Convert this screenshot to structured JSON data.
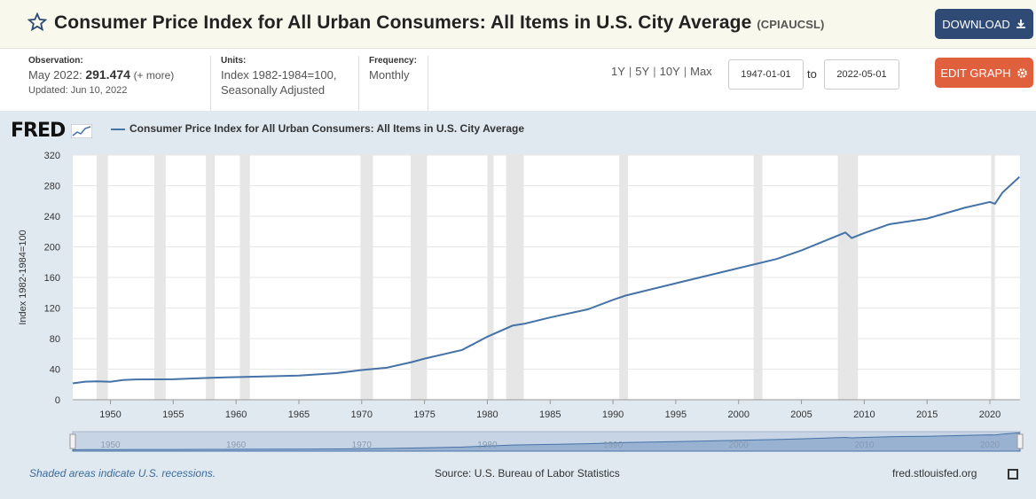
{
  "header": {
    "title": "Consumer Price Index for All Urban Consumers: All Items in U.S. City Average",
    "series_id": "(CPIAUCSL)",
    "download_label": "DOWNLOAD",
    "edit_label": "EDIT GRAPH"
  },
  "meta": {
    "observation_label": "Observation:",
    "observation_date": "May 2022:",
    "observation_value": "291.474",
    "observation_more": "(+ more)",
    "updated": "Updated: Jun 10, 2022",
    "units_label": "Units:",
    "units_line1": "Index 1982-1984=100,",
    "units_line2": "Seasonally Adjusted",
    "frequency_label": "Frequency:",
    "frequency_value": "Monthly"
  },
  "range": {
    "links": [
      "1Y",
      "5Y",
      "10Y",
      "Max"
    ],
    "start": "1947-01-01",
    "end": "2022-05-01",
    "to_label": "to"
  },
  "footer": {
    "recession_note": "Shaded areas indicate U.S. recessions.",
    "source": "Source: U.S. Bureau of Labor Statistics",
    "url": "fred.stlouisfed.org"
  },
  "logo": "FRED",
  "colors": {
    "series": "#4572a7",
    "recession": "#e6e6e6",
    "download": "#2e4a75",
    "edit": "#e0603e"
  },
  "chart_data": {
    "type": "line",
    "title": "",
    "ylabel": "Index 1982-1984=100",
    "xlabel": "",
    "xlim": [
      1947,
      2022.4
    ],
    "ylim": [
      0,
      320
    ],
    "yticks": [
      0,
      40,
      80,
      120,
      160,
      200,
      240,
      280,
      320
    ],
    "xticks": [
      1950,
      1955,
      1960,
      1965,
      1970,
      1975,
      1980,
      1985,
      1990,
      1995,
      2000,
      2005,
      2010,
      2015,
      2020
    ],
    "navigator_ticks": [
      1950,
      1960,
      1970,
      1980,
      1990,
      2000,
      2010,
      2020
    ],
    "grid": true,
    "legend": "top-left",
    "recessions": [
      [
        1948.9,
        1949.8
      ],
      [
        1953.5,
        1954.4
      ],
      [
        1957.6,
        1958.3
      ],
      [
        1960.3,
        1961.1
      ],
      [
        1969.9,
        1970.9
      ],
      [
        1973.9,
        1975.2
      ],
      [
        1980.0,
        1980.5
      ],
      [
        1981.5,
        1982.9
      ],
      [
        1990.5,
        1991.2
      ],
      [
        2001.2,
        2001.9
      ],
      [
        2007.9,
        2009.5
      ],
      [
        2020.1,
        2020.4
      ]
    ],
    "series": [
      {
        "name": "Consumer Price Index for All Urban Consumers: All Items in U.S. City Average",
        "x": [
          1947,
          1948,
          1949,
          1950,
          1951,
          1952,
          1955,
          1958,
          1960,
          1965,
          1968,
          1970,
          1972,
          1974,
          1975,
          1978,
          1980,
          1982,
          1983,
          1985,
          1988,
          1990,
          1991,
          1995,
          2000,
          2003,
          2005,
          2008.5,
          2009,
          2010,
          2012,
          2015,
          2018,
          2020,
          2020.4,
          2021,
          2022.35
        ],
        "y": [
          21.5,
          23.7,
          24.0,
          23.5,
          25.9,
          26.5,
          26.8,
          28.8,
          29.6,
          31.5,
          34.8,
          38.8,
          41.8,
          49.3,
          53.8,
          65.2,
          82.4,
          96.9,
          99.6,
          107.6,
          118.3,
          130.7,
          136.2,
          152.4,
          172.2,
          184.0,
          195.3,
          218.8,
          211.5,
          218.1,
          229.6,
          237.0,
          251.1,
          258.7,
          256.4,
          270.9,
          291.5
        ]
      }
    ]
  }
}
